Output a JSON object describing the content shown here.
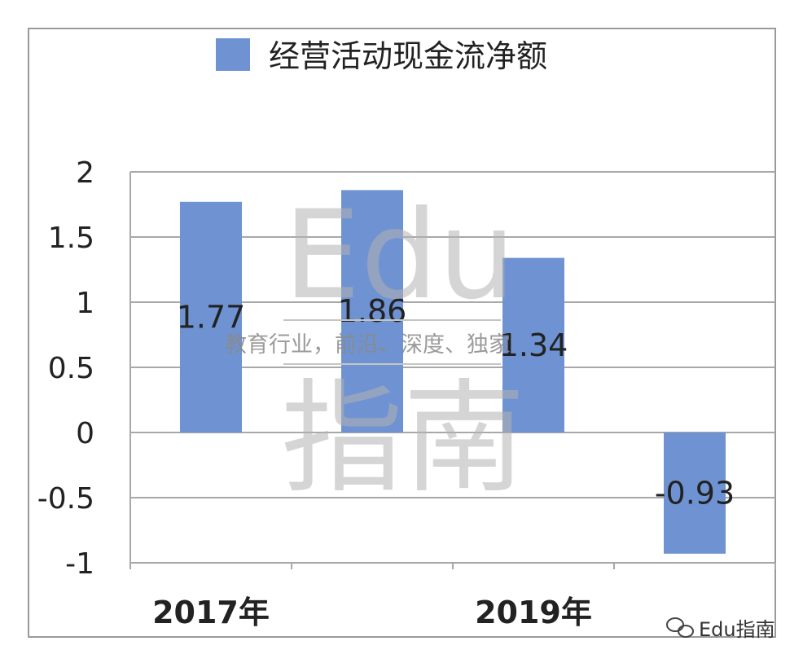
{
  "chart_data": {
    "type": "bar",
    "title": "",
    "xlabel": "",
    "ylabel": "",
    "series": [
      {
        "name": "经营活动现金流净额",
        "values": [
          1.77,
          1.86,
          1.34,
          -0.93
        ]
      }
    ],
    "x_tick_labels": [
      "2017年",
      "",
      "2019年",
      ""
    ],
    "data_labels": [
      "1.77",
      "1.86",
      "1.34",
      "-0.93"
    ],
    "y_ticks": [
      "2",
      "1.5",
      "1",
      "0.5",
      "0",
      "-0.5",
      "-1"
    ],
    "y_tick_values": [
      2,
      1.5,
      1,
      0.5,
      0,
      -0.5,
      -1
    ],
    "ylim": [
      -1,
      2
    ],
    "grid": "horizontal",
    "legend_position": "top",
    "bar_color": "#6f93d2"
  },
  "watermark": {
    "big_top": "Edu",
    "tagline": "教育行业，前沿、深度、独家",
    "big_bottom": "指南"
  },
  "credit": {
    "icon": "wechat-icon",
    "text": "Edu指南"
  }
}
